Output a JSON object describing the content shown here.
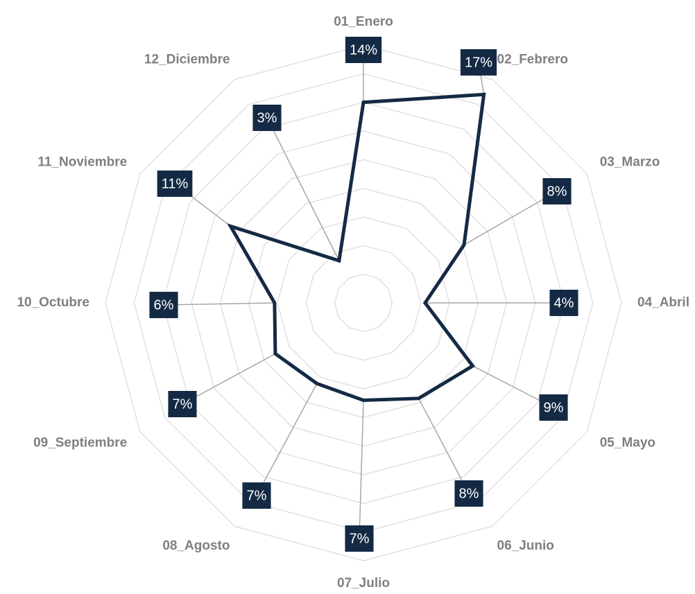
{
  "chart_data": {
    "type": "radar",
    "categories": [
      "01_Enero",
      "02_Febrero",
      "03_Marzo",
      "04_Abril",
      "05_Mayo",
      "06_Junio",
      "07_Julio",
      "08_Agosto",
      "09_Septiembre",
      "10_Octubre",
      "11_Noviembre",
      "12_Diciembre"
    ],
    "values": [
      14.0,
      16.8,
      8.1,
      4.3,
      8.8,
      7.7,
      6.8,
      6.5,
      7.1,
      6.2,
      10.7,
      3.4
    ],
    "value_labels": [
      "14%",
      "17%",
      "8%",
      "4%",
      "9%",
      "8%",
      "7%",
      "7%",
      "7%",
      "6%",
      "11%",
      "3%"
    ],
    "color": "#142a44",
    "ylim": [
      0,
      18
    ],
    "yticks": [
      0,
      2,
      4,
      6,
      8,
      10,
      12,
      14,
      16,
      18
    ],
    "grid": true
  }
}
